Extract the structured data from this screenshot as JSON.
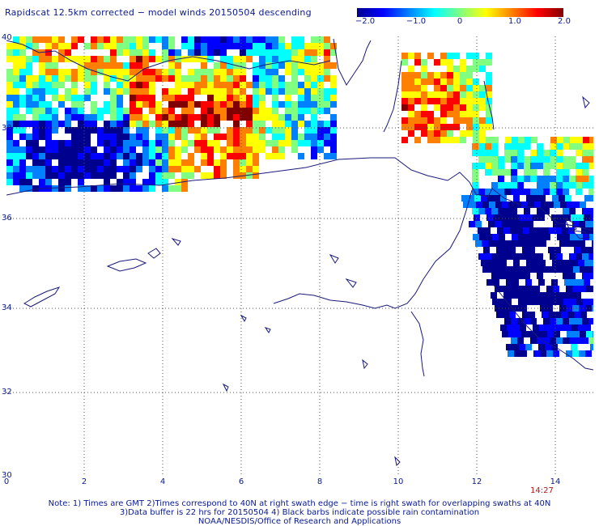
{
  "title": "Rapidscat 12.5km corrected − model winds 20150504 descending",
  "colorbar": {
    "ticks": [
      "−2.0",
      "−1.0",
      "0",
      "1.0",
      "2.0"
    ],
    "colors": [
      "#00008f",
      "#0000ff",
      "#0080ff",
      "#00ffff",
      "#80ff80",
      "#ffff00",
      "#ff8000",
      "#ff0000",
      "#800000"
    ]
  },
  "axes": {
    "x_ticks": [
      "0",
      "2",
      "4",
      "6",
      "8",
      "10",
      "12",
      "14"
    ],
    "y_ticks": [
      "40",
      "38",
      "36",
      "34",
      "32",
      "30"
    ]
  },
  "time_label": "14:27",
  "notes": [
    "Note: 1) Times are GMT 2)Times correspond to 40N at right swath edge − time is right swath for overlapping swaths at 40N",
    "3)Data buffer is 22 hrs for 20150504 4) Black barbs indicate possible rain contamination",
    "NOAA/NESDIS/Office of Research and Applications"
  ],
  "colors": {
    "coast": "#1a1a7a",
    "grid": "#555555",
    "label": "#0a1a8a",
    "time": "#b01818"
  }
}
